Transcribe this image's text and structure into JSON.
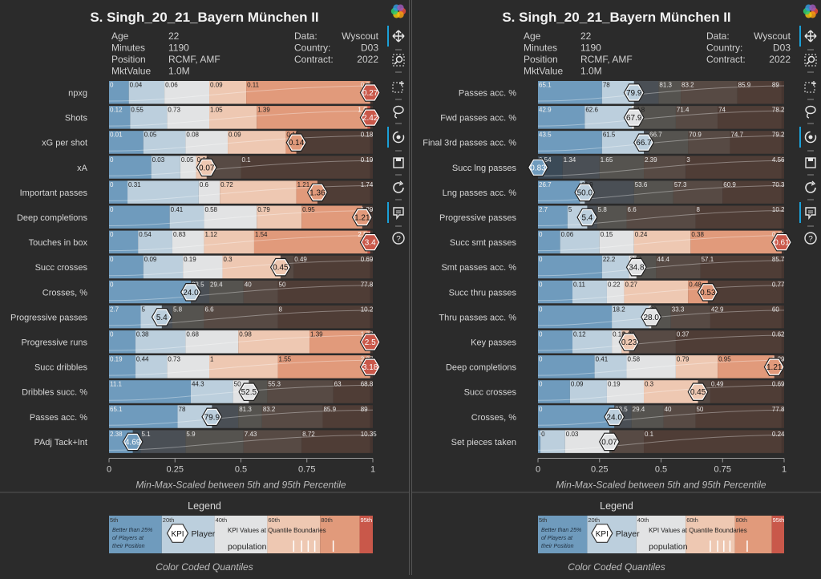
{
  "panels": [
    {
      "title": "S. Singh_20_21_Bayern München II",
      "info": {
        "left": [
          [
            "Age",
            "22"
          ],
          [
            "Minutes",
            "1190"
          ],
          [
            "Position",
            "RCMF, AMF"
          ],
          [
            "MktValue",
            "1.0M"
          ]
        ],
        "right": [
          [
            "Data:",
            "Wyscout"
          ],
          [
            "Country:",
            "D03"
          ],
          [
            "Contract:",
            "2022"
          ]
        ]
      },
      "xlabel": "Min-Max-Scaled between 5th and 95th Percentile",
      "legend_title": "Legend",
      "legend_caption": "Color Coded Quantiles",
      "chart_data": {
        "type": "bar",
        "xlim": [
          0,
          1
        ],
        "xticks": [
          "0",
          "0.25",
          "0.5",
          "0.75",
          "1"
        ],
        "rows": [
          {
            "label": "npxg",
            "value": "0.27",
            "q": [
              0.0,
              0.075,
              0.21,
              0.38,
              0.52,
              0.99
            ],
            "t": [
              "0",
              "0.04",
              "0.06",
              "0.09",
              "0.11",
              "0.2"
            ],
            "pos": 0.99
          },
          {
            "label": "Shots",
            "value": "2.42",
            "q": [
              0.0,
              0.08,
              0.22,
              0.38,
              0.56,
              0.98
            ],
            "t": [
              "0.12",
              "0.55",
              "0.73",
              "1.05",
              "1.39",
              "1.9"
            ],
            "pos": 0.99
          },
          {
            "label": "xG per shot",
            "value": "0.14",
            "q": [
              0.0,
              0.13,
              0.29,
              0.45,
              0.67,
              0.99
            ],
            "t": [
              "0.01",
              "0.05",
              "0.08",
              "0.09",
              "0.15",
              "0.18"
            ],
            "pos": 0.71
          },
          {
            "label": "xA",
            "value": "0.07",
            "q": [
              0.0,
              0.16,
              0.27,
              0.33,
              0.5,
              0.99
            ],
            "t": [
              "0",
              "0.03",
              "0.05",
              "0.06",
              "0.1",
              "0.19"
            ],
            "pos": 0.37
          },
          {
            "label": "Important passes",
            "value": "1.36",
            "q": [
              0.0,
              0.07,
              0.34,
              0.42,
              0.71,
              0.99
            ],
            "t": [
              "0",
              "0.31",
              "0.6",
              "0.72",
              "1.21",
              "1.74"
            ],
            "pos": 0.79
          },
          {
            "label": "Deep completions",
            "value": "1.21",
            "q": [
              0.0,
              0.23,
              0.36,
              0.56,
              0.73,
              0.99
            ],
            "t": [
              "0",
              "0.41",
              "0.58",
              "0.79",
              "0.95",
              "1.29"
            ],
            "pos": 0.96
          },
          {
            "label": "Touches in box",
            "value": "3.4",
            "q": [
              0.0,
              0.11,
              0.24,
              0.36,
              0.55,
              0.98
            ],
            "t": [
              "0",
              "0.54",
              "0.83",
              "1.12",
              "1.54",
              "2.57"
            ],
            "pos": 0.99
          },
          {
            "label": "Succ crosses",
            "value": "0.45",
            "q": [
              0.0,
              0.13,
              0.28,
              0.43,
              0.7,
              0.99
            ],
            "t": [
              "0",
              "0.09",
              "0.19",
              "0.3",
              "0.49",
              "0.69"
            ],
            "pos": 0.65
          },
          {
            "label": "Crosses, %",
            "value": "24.0",
            "q": [
              0.0,
              0.31,
              0.38,
              0.51,
              0.64,
              0.99
            ],
            "t": [
              "0",
              "23.5",
              "29.4",
              "40",
              "50",
              "77.8"
            ],
            "pos": 0.31
          },
          {
            "label": "Progressive passes",
            "value": "5.4",
            "q": [
              0.0,
              0.12,
              0.24,
              0.36,
              0.64,
              0.99
            ],
            "t": [
              "2.7",
              "5",
              "5.8",
              "6.6",
              "8",
              "10.2"
            ],
            "pos": 0.2
          },
          {
            "label": "Progressive runs",
            "value": "2.5",
            "q": [
              0.0,
              0.1,
              0.29,
              0.49,
              0.76,
              0.99
            ],
            "t": [
              "0",
              "0.38",
              "0.68",
              "0.98",
              "1.39",
              "1.77"
            ],
            "pos": 0.99
          },
          {
            "label": "Succ dribbles",
            "value": "3.18",
            "q": [
              0.0,
              0.1,
              0.22,
              0.38,
              0.64,
              0.99
            ],
            "t": [
              "0.19",
              "0.44",
              "0.73",
              "1",
              "1.55",
              "2.27"
            ],
            "pos": 0.99
          },
          {
            "label": "Dribbles succ. %",
            "value": "52.5",
            "q": [
              0.0,
              0.31,
              0.47,
              0.6,
              0.85,
              0.99
            ],
            "t": [
              "11.1",
              "44.3",
              "50",
              "55.3",
              "63",
              "68.8"
            ],
            "pos": 0.53
          },
          {
            "label": "Passes acc. %",
            "value": "79.9",
            "q": [
              0.0,
              0.26,
              0.49,
              0.58,
              0.81,
              0.99
            ],
            "t": [
              "65.1",
              "78",
              "81.3",
              "83.2",
              "85.9",
              "89"
            ],
            "pos": 0.39
          },
          {
            "label": "PAdj Tack+Int",
            "value": "4.69",
            "q": [
              0.0,
              0.12,
              0.29,
              0.51,
              0.73,
              0.99
            ],
            "t": [
              "2.38",
              "5.1",
              "5.9",
              "7.43",
              "8.72",
              "10.35"
            ],
            "pos": 0.09
          }
        ]
      }
    },
    {
      "title": "S. Singh_20_21_Bayern München II",
      "info": {
        "left": [
          [
            "Age",
            "22"
          ],
          [
            "Minutes",
            "1190"
          ],
          [
            "Position",
            "RCMF, AMF"
          ],
          [
            "MktValue",
            "1.0M"
          ]
        ],
        "right": [
          [
            "Data:",
            "Wyscout"
          ],
          [
            "Country:",
            "D03"
          ],
          [
            "Contract:",
            "2022"
          ]
        ]
      },
      "xlabel": "Min-Max-Scaled between 5th and 95th Percentile",
      "legend_title": "Legend",
      "legend_caption": "Color Coded Quantiles",
      "chart_data": {
        "type": "bar",
        "xlim": [
          0,
          1
        ],
        "xticks": [
          "0",
          "0.25",
          "0.5",
          "0.75",
          "1"
        ],
        "rows": [
          {
            "label": "Passes acc. %",
            "value": "79.9",
            "q": [
              0.0,
              0.26,
              0.49,
              0.58,
              0.81,
              0.99
            ],
            "t": [
              "65.1",
              "78",
              "81.3",
              "83.2",
              "85.9",
              "89"
            ],
            "pos": 0.39
          },
          {
            "label": "Fwd passes acc. %",
            "value": "67.9",
            "q": [
              0.0,
              0.19,
              0.38,
              0.56,
              0.73,
              0.99
            ],
            "t": [
              "42.9",
              "62.6",
              "67.8",
              "71.4",
              "74",
              "78.2"
            ],
            "pos": 0.39
          },
          {
            "label": "Final 3rd passes acc. %",
            "value": "66.7",
            "q": [
              0.0,
              0.26,
              0.45,
              0.61,
              0.78,
              0.99
            ],
            "t": [
              "43.5",
              "61.5",
              "66.7",
              "70.9",
              "74.7",
              "79.2"
            ],
            "pos": 0.43
          },
          {
            "label": "Succ lng passes",
            "value": "0.83",
            "q": [
              0.0,
              0.1,
              0.25,
              0.43,
              0.6,
              0.99
            ],
            "t": [
              "0.54",
              "1.34",
              "1.65",
              "2.39",
              "3",
              "4.56"
            ],
            "pos": 0.0
          },
          {
            "label": "Lng passes acc. %",
            "value": "50.0",
            "q": [
              0.0,
              0.17,
              0.39,
              0.55,
              0.75,
              0.99
            ],
            "t": [
              "26.7",
              "48.9",
              "53.6",
              "57.3",
              "60.9",
              "70.3"
            ],
            "pos": 0.19
          },
          {
            "label": "Progressive passes",
            "value": "5.4",
            "q": [
              0.0,
              0.12,
              0.24,
              0.36,
              0.64,
              0.99
            ],
            "t": [
              "2.7",
              "5",
              "5.8",
              "6.6",
              "8",
              "10.2"
            ],
            "pos": 0.2
          },
          {
            "label": "Succ smt passes",
            "value": "0.61",
            "q": [
              0.0,
              0.09,
              0.25,
              0.39,
              0.62,
              0.99
            ],
            "t": [
              "0",
              "0.06",
              "0.15",
              "0.24",
              "0.38",
              "0.61"
            ],
            "pos": 0.99
          },
          {
            "label": "Smt passes acc. %",
            "value": "34.8",
            "q": [
              0.0,
              0.26,
              0.37,
              0.48,
              0.66,
              0.99
            ],
            "t": [
              "0",
              "22.2",
              "33.1",
              "44.4",
              "57.1",
              "85.7"
            ],
            "pos": 0.4
          },
          {
            "label": "Succ thru passes",
            "value": "0.53",
            "q": [
              0.0,
              0.14,
              0.28,
              0.35,
              0.61,
              0.99
            ],
            "t": [
              "0",
              "0.11",
              "0.22",
              "0.27",
              "0.48",
              "0.77"
            ],
            "pos": 0.69
          },
          {
            "label": "Thru passes acc. %",
            "value": "28.0",
            "q": [
              0.0,
              0.3,
              0.45,
              0.54,
              0.7,
              0.99
            ],
            "t": [
              "0",
              "18.2",
              "29",
              "33.3",
              "42.9",
              "60"
            ],
            "pos": 0.46
          },
          {
            "label": "Key passes",
            "value": "0.23",
            "q": [
              0.0,
              0.14,
              0.3,
              0.34,
              0.56,
              0.99
            ],
            "t": [
              "0",
              "0.12",
              "0.18",
              "0.26",
              "0.37",
              "0.62"
            ],
            "pos": 0.37
          },
          {
            "label": "Deep completions",
            "value": "1.21",
            "q": [
              0.0,
              0.23,
              0.36,
              0.56,
              0.73,
              0.99
            ],
            "t": [
              "0",
              "0.41",
              "0.58",
              "0.79",
              "0.95",
              "1.29"
            ],
            "pos": 0.96
          },
          {
            "label": "Succ crosses",
            "value": "0.45",
            "q": [
              0.0,
              0.13,
              0.28,
              0.43,
              0.7,
              0.99
            ],
            "t": [
              "0",
              "0.09",
              "0.19",
              "0.3",
              "0.49",
              "0.69"
            ],
            "pos": 0.65
          },
          {
            "label": "Crosses, %",
            "value": "24.0",
            "q": [
              0.0,
              0.31,
              0.38,
              0.51,
              0.64,
              0.99
            ],
            "t": [
              "0",
              "23.5",
              "29.4",
              "40",
              "50",
              "77.8"
            ],
            "pos": 0.31
          },
          {
            "label": "Set pieces taken",
            "value": "0.07",
            "q": [
              0.0,
              0.01,
              0.11,
              0.3,
              0.43,
              0.99
            ],
            "t": [
              "0",
              "0",
              "0.03",
              "",
              "0.1",
              "0.24"
            ],
            "pos": 0.29
          }
        ]
      }
    }
  ],
  "legend": {
    "quantile_labels": [
      "5th",
      "20th",
      "40th",
      "60th",
      "80th",
      "95th"
    ],
    "better_text": [
      "Better than 25%",
      "of Players at",
      "their Position"
    ],
    "kpi": "KPI",
    "player": "Player",
    "kpi_text": "KPI Values at Quantile Boundaries",
    "population": "population"
  },
  "colors": {
    "bands": [
      "#6f9bbd",
      "#bccfdd",
      "#e2e3e4",
      "#eec8b2",
      "#e19a7b",
      "#c9584a"
    ],
    "muted_bands": [
      "#3b4a57",
      "#4a4f55",
      "#55534f",
      "#574a44",
      "#4f3d36",
      "#453530"
    ],
    "accent": "#1aa0d8"
  },
  "toolbar": [
    "logo-icon",
    "move-icon",
    "zoom-icon",
    "box-select-icon",
    "lasso-icon",
    "wheel-zoom-icon",
    "save-icon",
    "reset-icon",
    "hover-icon",
    "help-icon"
  ]
}
